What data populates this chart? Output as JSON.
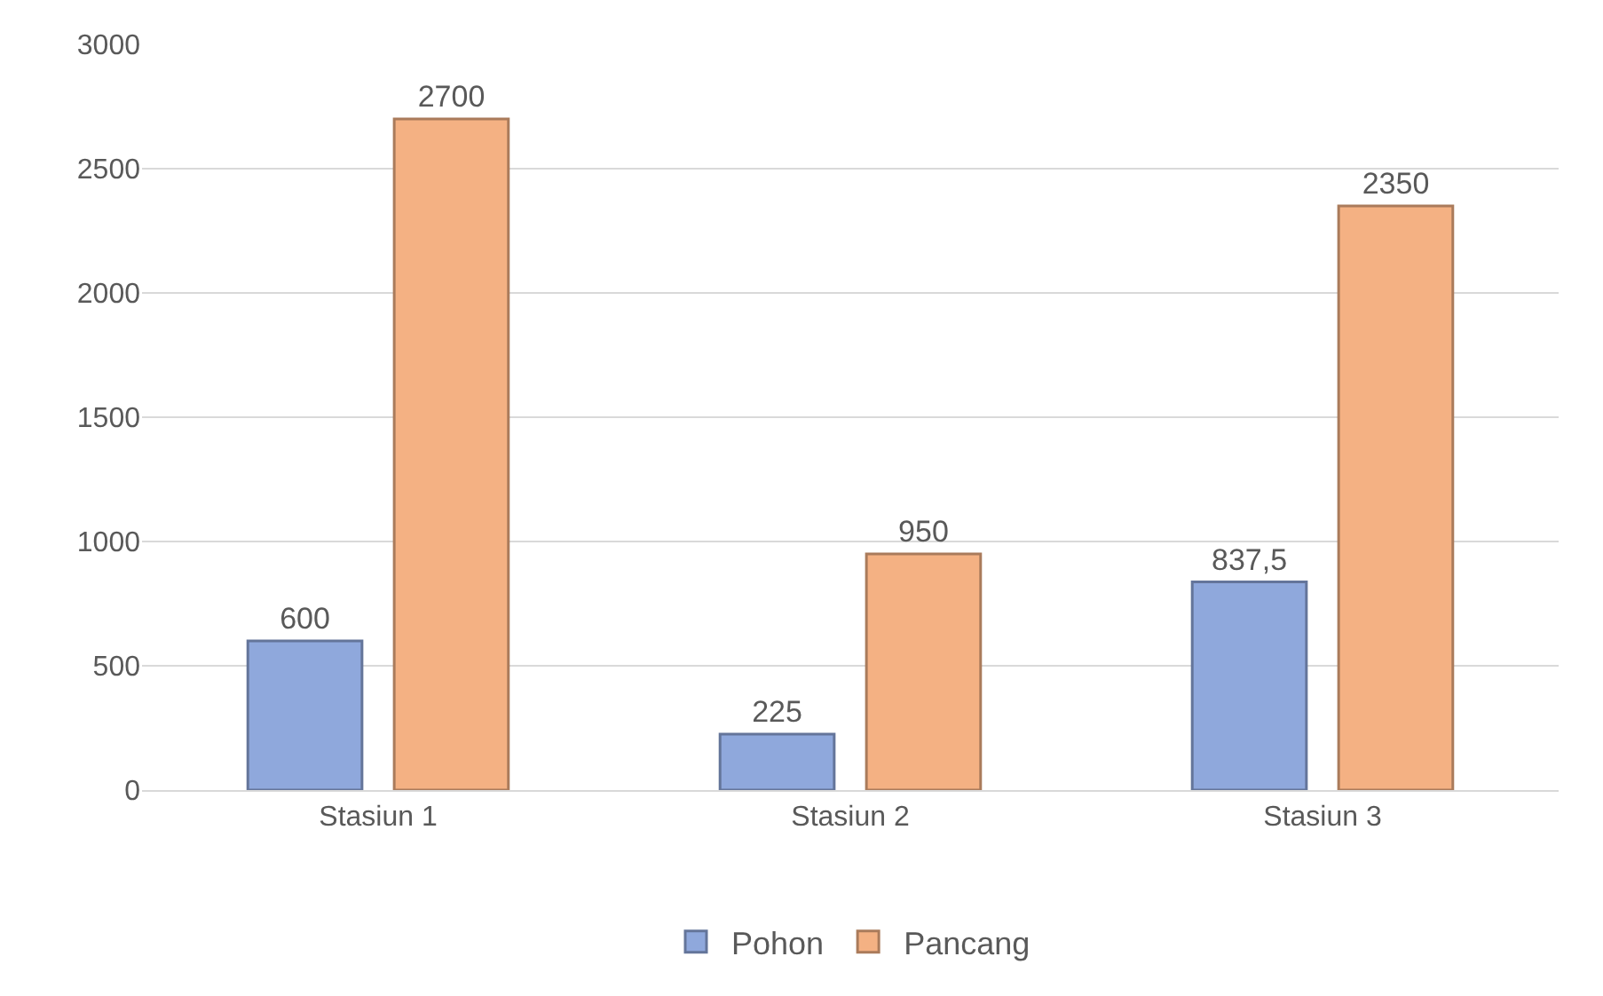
{
  "chart_data": {
    "type": "bar",
    "categories": [
      "Stasiun 1",
      "Stasiun 2",
      "Stasiun 3"
    ],
    "series": [
      {
        "name": "Pohon",
        "color": "#8fa8dc",
        "values": [
          600,
          225,
          837.5
        ],
        "value_labels": [
          "600",
          "225",
          "837,5"
        ]
      },
      {
        "name": "Pancang",
        "color": "#f4b183",
        "values": [
          2700,
          950,
          2350
        ],
        "value_labels": [
          "2700",
          "950",
          "2350"
        ]
      }
    ],
    "ylim": [
      0,
      3000
    ],
    "yticks": [
      0,
      500,
      1000,
      1500,
      2000,
      2500,
      3000
    ],
    "grid": "y",
    "legend": "bottom"
  }
}
